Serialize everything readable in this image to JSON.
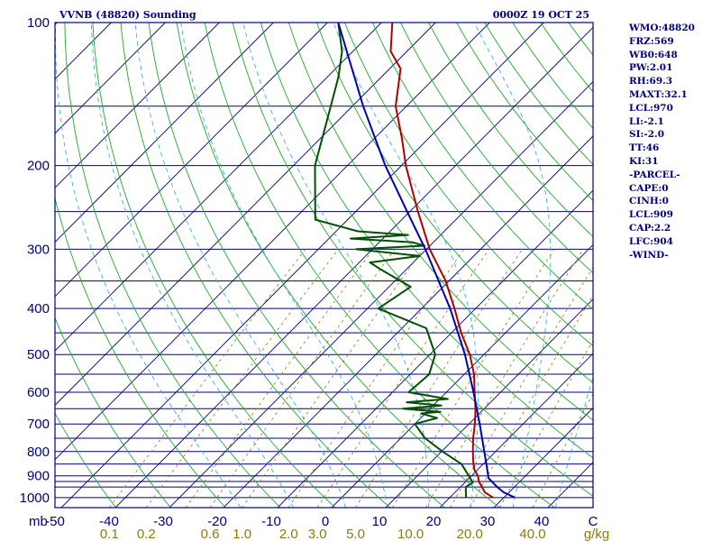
{
  "header": {
    "station": "VVNB (48820) Sounding",
    "time": "0000Z 19 OCT 25"
  },
  "stats": [
    "WMO:48820",
    "FRZ:569",
    "WB0:648",
    "PW:2.01",
    "RH:69.3",
    "MAXT:32.1",
    "LCL:970",
    "LI:-2.1",
    "SI:-2.0",
    "TT:46",
    "KI:31",
    "-PARCEL-",
    "CAPE:0",
    "CINH:0",
    "LCL:909",
    "CAP:2.2",
    "LFC:904",
    "-WIND-"
  ],
  "colors": {
    "frame": "#000080",
    "isobar": "#000080",
    "isotherm": "#000080",
    "dry_adiabat": "#1fa82a",
    "moist_adiabat": "#3fb0d8",
    "mixing_ratio": "#8b7a10",
    "temperature": "#b00000",
    "dewpoint": "#005000",
    "parcel": "#0000b0"
  },
  "chart_data": {
    "type": "line",
    "title": "VVNB (48820) Sounding",
    "subtitle": "0000Z 19 OCT 25",
    "xlabel": "C",
    "ylabel": "mb",
    "mixing_ratio_unit": "g/kg",
    "pressure_range": [
      1050,
      100
    ],
    "temperature_range": [
      -50,
      50
    ],
    "pressure_ticks": [
      {
        "value": 100,
        "label": "100"
      },
      {
        "value": 200,
        "label": "200"
      },
      {
        "value": 300,
        "label": "300"
      },
      {
        "value": 400,
        "label": "400"
      },
      {
        "value": 500,
        "label": "500"
      },
      {
        "value": 600,
        "label": "600"
      },
      {
        "value": 700,
        "label": "700"
      },
      {
        "value": 800,
        "label": "800"
      },
      {
        "value": 900,
        "label": "900"
      },
      {
        "value": 1000,
        "label": "1000"
      }
    ],
    "temperature_ticks": [
      {
        "value": -50,
        "label": "-50"
      },
      {
        "value": -40,
        "label": "-40"
      },
      {
        "value": -30,
        "label": "-30"
      },
      {
        "value": -20,
        "label": "-20"
      },
      {
        "value": -10,
        "label": "-10"
      },
      {
        "value": 0,
        "label": "0"
      },
      {
        "value": 10,
        "label": "10"
      },
      {
        "value": 20,
        "label": "20"
      },
      {
        "value": 30,
        "label": "30"
      },
      {
        "value": 40,
        "label": "40"
      }
    ],
    "mixing_ratio_ticks": [
      {
        "value": 0.1,
        "label": "0.1"
      },
      {
        "value": 0.2,
        "label": "0.2"
      },
      {
        "value": 0.6,
        "label": "0.6"
      },
      {
        "value": 1.0,
        "label": "1.0"
      },
      {
        "value": 2.0,
        "label": "2.0"
      },
      {
        "value": 3.0,
        "label": "3.0"
      },
      {
        "value": 5.0,
        "label": "5.0"
      },
      {
        "value": 10.0,
        "label": "10.0"
      },
      {
        "value": 20.0,
        "label": "20.0"
      },
      {
        "value": 40.0,
        "label": "40.0"
      }
    ],
    "isobars": [
      100,
      150,
      200,
      250,
      300,
      350,
      400,
      450,
      500,
      550,
      600,
      650,
      700,
      750,
      800,
      850,
      900,
      925,
      950,
      1000
    ],
    "isotherms_step": 10,
    "dry_adiabats_step": 10,
    "moist_adiabats": [
      -20,
      -10,
      0,
      8,
      16,
      24,
      32,
      40
    ],
    "mixing_ratio_lines": [
      0.1,
      0.2,
      0.4,
      0.6,
      1,
      2,
      3,
      5,
      8,
      12,
      16,
      20,
      28,
      40
    ],
    "series": [
      {
        "name": "Temperature",
        "points": [
          [
            1000,
            28
          ],
          [
            975,
            25.5
          ],
          [
            950,
            24
          ],
          [
            925,
            22.4
          ],
          [
            900,
            21.2
          ],
          [
            875,
            19.5
          ],
          [
            850,
            18.2
          ],
          [
            800,
            15.8
          ],
          [
            750,
            13.4
          ],
          [
            700,
            11.1
          ],
          [
            650,
            8.4
          ],
          [
            600,
            5.2
          ],
          [
            550,
            1.8
          ],
          [
            500,
            -2.6
          ],
          [
            450,
            -8.2
          ],
          [
            400,
            -13.9
          ],
          [
            350,
            -20.6
          ],
          [
            300,
            -29.4
          ],
          [
            250,
            -38.5
          ],
          [
            200,
            -49.2
          ],
          [
            175,
            -55
          ],
          [
            150,
            -62
          ],
          [
            125,
            -68
          ],
          [
            115,
            -73
          ],
          [
            100,
            -78
          ]
        ]
      },
      {
        "name": "Dewpoint",
        "points": [
          [
            1000,
            23
          ],
          [
            975,
            22
          ],
          [
            950,
            21
          ],
          [
            930,
            21.5
          ],
          [
            900,
            19.5
          ],
          [
            850,
            16
          ],
          [
            800,
            10.2
          ],
          [
            750,
            4.5
          ],
          [
            700,
            0
          ],
          [
            680,
            3
          ],
          [
            665,
            -0.8
          ],
          [
            660,
            2.5
          ],
          [
            650,
            -5
          ],
          [
            640,
            1.5
          ],
          [
            630,
            -5.5
          ],
          [
            620,
            1.5
          ],
          [
            600,
            -7
          ],
          [
            550,
            -6.5
          ],
          [
            500,
            -9
          ],
          [
            440,
            -15.5
          ],
          [
            400,
            -28
          ],
          [
            360,
            -26
          ],
          [
            330,
            -35
          ],
          [
            320,
            -38
          ],
          [
            310,
            -30
          ],
          [
            300,
            -43
          ],
          [
            295,
            -31
          ],
          [
            290,
            -34
          ],
          [
            285,
            -46
          ],
          [
            280,
            -36
          ],
          [
            275,
            -46
          ],
          [
            260,
            -56
          ],
          [
            200,
            -66
          ],
          [
            150,
            -74
          ],
          [
            130,
            -78
          ],
          [
            115,
            -82
          ],
          [
            100,
            -88
          ]
        ]
      },
      {
        "name": "Parcel",
        "points": [
          [
            1000,
            32
          ],
          [
            975,
            29
          ],
          [
            950,
            26.8
          ],
          [
            909,
            23.5
          ],
          [
            900,
            23.1
          ],
          [
            850,
            20.6
          ],
          [
            800,
            17.9
          ],
          [
            700,
            12
          ],
          [
            600,
            5
          ],
          [
            500,
            -3.5
          ],
          [
            400,
            -14.7
          ],
          [
            300,
            -30.2
          ],
          [
            250,
            -40.5
          ],
          [
            200,
            -53
          ],
          [
            150,
            -68
          ],
          [
            125,
            -77
          ],
          [
            100,
            -88
          ]
        ]
      }
    ]
  }
}
